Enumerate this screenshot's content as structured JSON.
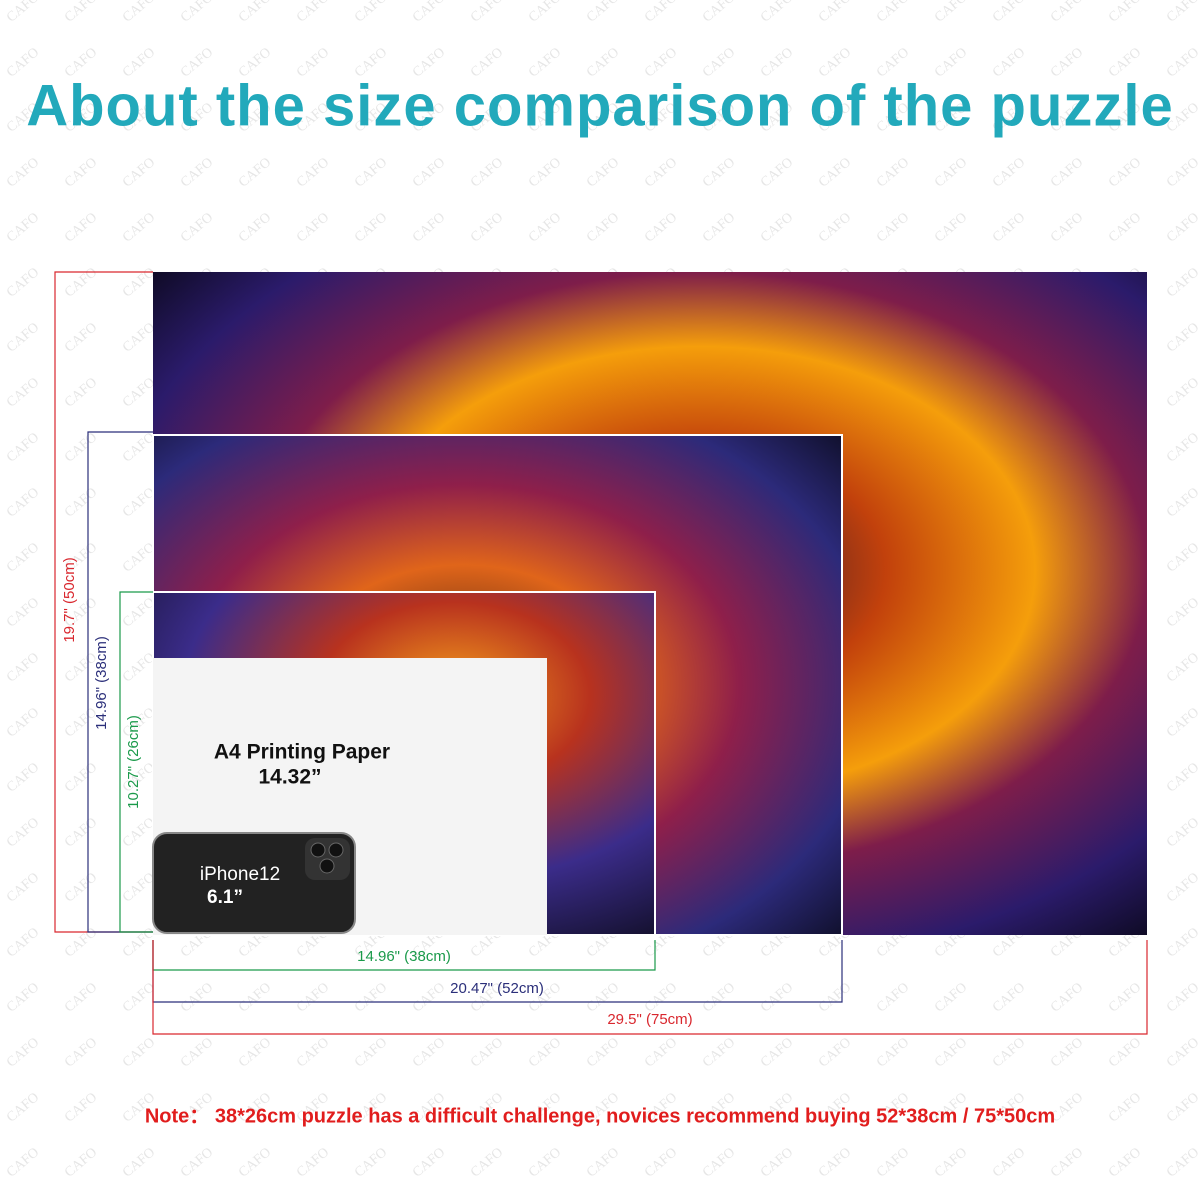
{
  "watermark": "CAFO",
  "title": "About the size comparison of the puzzle",
  "puzzles": [
    {
      "height_label": "19.7\" (50cm)",
      "width_label": "29.5\" (75cm)"
    },
    {
      "height_label": "14.96\" (38cm)",
      "width_label": "20.47\" (52cm)"
    },
    {
      "height_label": "10.27\" (26cm)",
      "width_label": "14.96\" (38cm)"
    }
  ],
  "a4": {
    "label": "A4 Printing Paper",
    "size": "14.32”"
  },
  "iphone": {
    "label": "iPhone12",
    "size": "6.1”"
  },
  "note": "Note： 38*26cm puzzle has a difficult challenge, novices recommend buying 52*38cm / 75*50cm"
}
